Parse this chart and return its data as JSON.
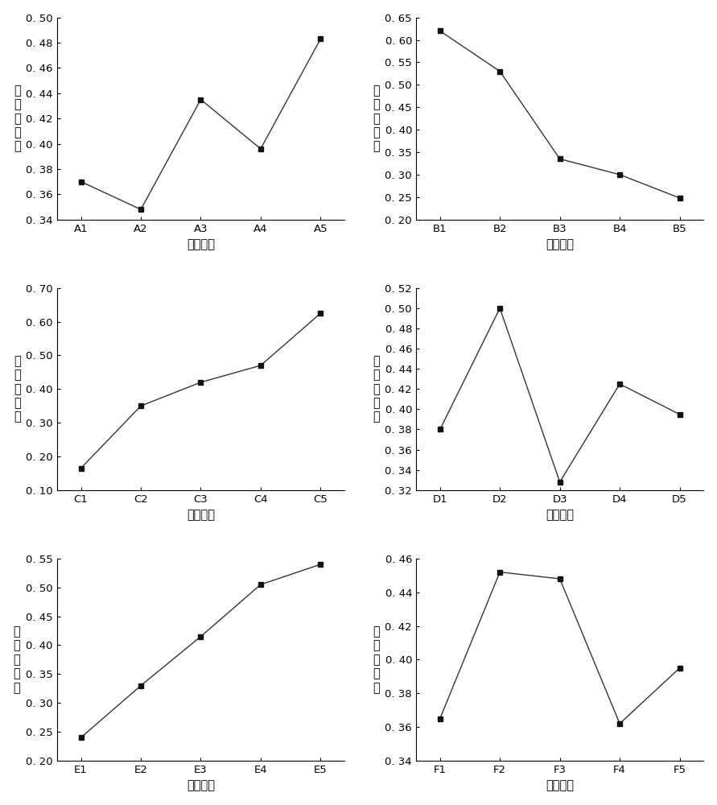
{
  "subplots": [
    {
      "label": "A",
      "x_labels": [
        "A1",
        "A2",
        "A3",
        "A4",
        "A5"
      ],
      "y_values": [
        0.37,
        0.348,
        0.435,
        0.396,
        0.483
      ],
      "ylim": [
        0.34,
        0.5
      ],
      "yticks": [
        0.34,
        0.36,
        0.38,
        0.4,
        0.42,
        0.44,
        0.46,
        0.48,
        0.5
      ]
    },
    {
      "label": "B",
      "x_labels": [
        "B1",
        "B2",
        "B3",
        "B4",
        "B5"
      ],
      "y_values": [
        0.62,
        0.53,
        0.335,
        0.3,
        0.248
      ],
      "ylim": [
        0.2,
        0.65
      ],
      "yticks": [
        0.2,
        0.25,
        0.3,
        0.35,
        0.4,
        0.45,
        0.5,
        0.55,
        0.6,
        0.65
      ]
    },
    {
      "label": "C",
      "x_labels": [
        "C1",
        "C2",
        "C3",
        "C4",
        "C5"
      ],
      "y_values": [
        0.165,
        0.35,
        0.42,
        0.47,
        0.625
      ],
      "ylim": [
        0.1,
        0.7
      ],
      "yticks": [
        0.1,
        0.2,
        0.3,
        0.4,
        0.5,
        0.6,
        0.7
      ]
    },
    {
      "label": "D",
      "x_labels": [
        "D1",
        "D2",
        "D3",
        "D4",
        "D5"
      ],
      "y_values": [
        0.38,
        0.5,
        0.328,
        0.425,
        0.395
      ],
      "ylim": [
        0.32,
        0.52
      ],
      "yticks": [
        0.32,
        0.34,
        0.36,
        0.38,
        0.4,
        0.42,
        0.44,
        0.46,
        0.48,
        0.5,
        0.52
      ]
    },
    {
      "label": "E",
      "x_labels": [
        "E1",
        "E2",
        "E3",
        "E4",
        "E5"
      ],
      "y_values": [
        0.24,
        0.33,
        0.415,
        0.505,
        0.54
      ],
      "ylim": [
        0.2,
        0.55
      ],
      "yticks": [
        0.2,
        0.25,
        0.3,
        0.35,
        0.4,
        0.45,
        0.5,
        0.55
      ]
    },
    {
      "label": "F",
      "x_labels": [
        "F1",
        "F2",
        "F3",
        "F4",
        "F5"
      ],
      "y_values": [
        0.365,
        0.452,
        0.448,
        0.362,
        0.395
      ],
      "ylim": [
        0.34,
        0.46
      ],
      "yticks": [
        0.34,
        0.36,
        0.38,
        0.4,
        0.42,
        0.44,
        0.46
      ]
    }
  ],
  "ylabel": "相对接近度",
  "xlabel": "因素水平",
  "line_color": "#333333",
  "marker": "s",
  "marker_size": 4,
  "marker_color": "#111111",
  "line_width": 1.0,
  "font_size_tick": 9.5,
  "font_size_label": 10.5,
  "background_color": "#ffffff"
}
